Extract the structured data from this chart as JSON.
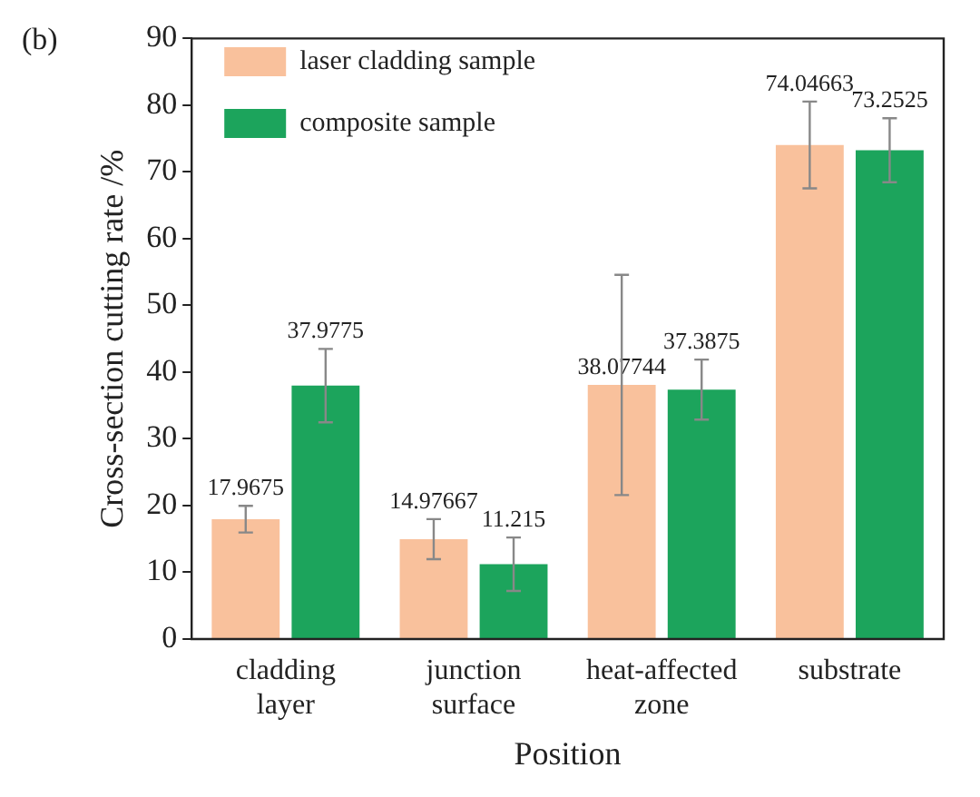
{
  "chart_data": {
    "type": "bar",
    "xlabel": "Position",
    "ylabel": "Cross-section cutting rate /%",
    "categories": [
      "cladding layer",
      "junction surface",
      "heat-affected zone",
      "substrate"
    ],
    "series": [
      {
        "name": "laser cladding sample",
        "color": "#f9c19c",
        "values": [
          17.9675,
          14.97667,
          38.07744,
          74.04663
        ],
        "errors": [
          2,
          3,
          16.5,
          6.5
        ],
        "value_labels": [
          "17.9675",
          "14.97667",
          "38.07744",
          "74.04663"
        ]
      },
      {
        "name": "composite sample",
        "color": "#1ca45c",
        "values": [
          37.9775,
          11.215,
          37.3875,
          73.2525
        ],
        "errors": [
          5.5,
          4,
          4.5,
          4.8
        ],
        "value_labels": [
          "37.9775",
          "11.215",
          "37.3875",
          "73.2525"
        ]
      }
    ],
    "ylim": [
      0,
      90
    ],
    "yticks": [
      0,
      10,
      20,
      30,
      40,
      50,
      60,
      70,
      80,
      90
    ],
    "grid": false,
    "legend": "top left",
    "annotations": [
      "(b)"
    ]
  }
}
